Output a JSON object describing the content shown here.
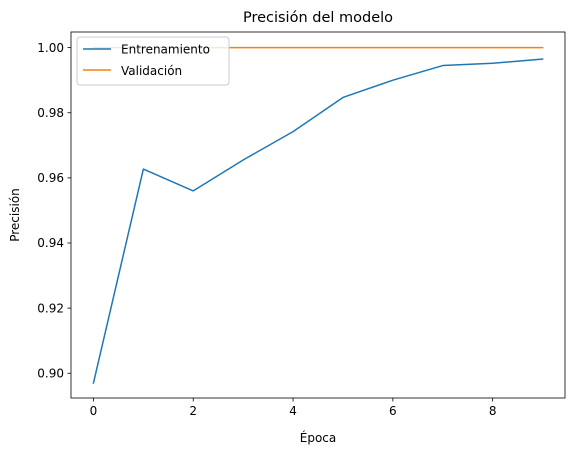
{
  "chart_data": {
    "type": "line",
    "title": "Precisión del modelo",
    "xlabel": "Época",
    "ylabel": "Precisión",
    "x": [
      0,
      1,
      2,
      3,
      4,
      5,
      6,
      7,
      8,
      9
    ],
    "series": [
      {
        "name": "Entrenamiento",
        "color": "#1f77b4",
        "values": [
          0.897,
          0.9627,
          0.956,
          0.9655,
          0.9742,
          0.9847,
          0.99,
          0.9945,
          0.9952,
          0.9965
        ]
      },
      {
        "name": "Validación",
        "color": "#ff7f0e",
        "values": [
          1.0,
          1.0,
          1.0,
          1.0,
          1.0,
          1.0,
          1.0,
          1.0,
          1.0,
          1.0
        ]
      }
    ],
    "xlim": [
      -0.45,
      9.45
    ],
    "ylim": [
      0.8924,
      1.0048
    ],
    "xticks": [
      0,
      2,
      4,
      6,
      8
    ],
    "xtick_labels": [
      "0",
      "2",
      "4",
      "6",
      "8"
    ],
    "yticks": [
      0.9,
      0.92,
      0.94,
      0.96,
      0.98,
      1.0
    ],
    "ytick_labels": [
      "0.90",
      "0.92",
      "0.94",
      "0.96",
      "0.98",
      "1.00"
    ],
    "grid": false,
    "legend_position": "upper-left"
  }
}
